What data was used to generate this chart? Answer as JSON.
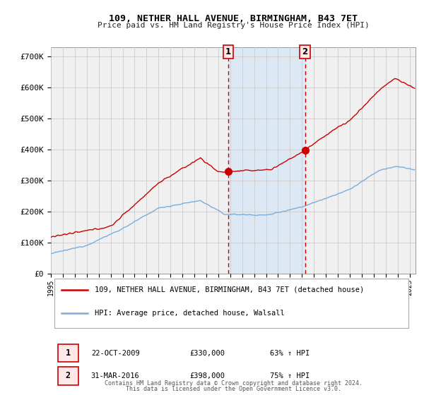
{
  "title": "109, NETHER HALL AVENUE, BIRMINGHAM, B43 7ET",
  "subtitle": "Price paid vs. HM Land Registry's House Price Index (HPI)",
  "legend_red": "109, NETHER HALL AVENUE, BIRMINGHAM, B43 7ET (detached house)",
  "legend_blue": "HPI: Average price, detached house, Walsall",
  "marker1_date": "22-OCT-2009",
  "marker1_price": "£330,000",
  "marker1_hpi": "63% ↑ HPI",
  "marker2_date": "31-MAR-2016",
  "marker2_price": "£398,000",
  "marker2_hpi": "75% ↑ HPI",
  "ylabel_ticks": [
    "£0",
    "£100K",
    "£200K",
    "£300K",
    "£400K",
    "£500K",
    "£600K",
    "£700K"
  ],
  "ytick_vals": [
    0,
    100000,
    200000,
    300000,
    400000,
    500000,
    600000,
    700000
  ],
  "ylim": [
    0,
    730000
  ],
  "xlim_start": 1995.0,
  "xlim_end": 2025.5,
  "shade_start": 2009.833,
  "shade_end": 2016.25,
  "vline1_x": 2009.833,
  "vline2_x": 2016.25,
  "marker1_x": 2009.833,
  "marker1_y": 330000,
  "marker2_x": 2016.25,
  "marker2_y": 398000,
  "red_color": "#cc0000",
  "blue_color": "#7aaddb",
  "shade_color": "#dce9f5",
  "grid_color": "#cccccc",
  "plot_bg_color": "#f0f0f0",
  "fig_bg_color": "#ffffff",
  "footnote1": "Contains HM Land Registry data © Crown copyright and database right 2024.",
  "footnote2": "This data is licensed under the Open Government Licence v3.0.",
  "box_facecolor": "#ffe8e8",
  "box_edgecolor": "#cc0000"
}
